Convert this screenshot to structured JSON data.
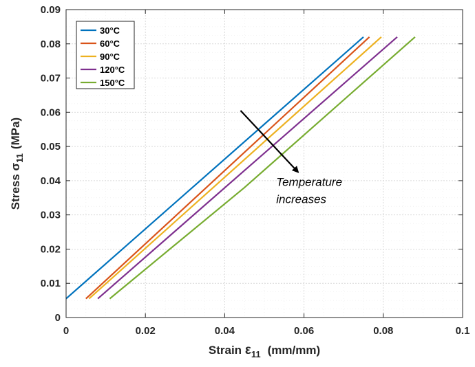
{
  "chart_data": {
    "type": "line",
    "title": "",
    "xlabel": "Strain",
    "xlabel_symbol": "ε",
    "xlabel_sub": "11",
    "xlabel_unit": "(mm/mm)",
    "ylabel": "Stress",
    "ylabel_symbol": "σ",
    "ylabel_sub": "11",
    "ylabel_unit": "(MPa)",
    "xlim": [
      0,
      0.1
    ],
    "ylim": [
      0,
      0.09
    ],
    "xticks": [
      "0",
      "0.02",
      "0.04",
      "0.06",
      "0.08",
      "0.1"
    ],
    "yticks": [
      "0",
      "0.01",
      "0.02",
      "0.03",
      "0.04",
      "0.05",
      "0.06",
      "0.07",
      "0.08",
      "0.09"
    ],
    "grid": true,
    "legend_position": "top-left",
    "series": [
      {
        "name": "30°C",
        "color": "#0072BD",
        "x": [
          0,
          0.075
        ],
        "y": [
          0.0055,
          0.082
        ]
      },
      {
        "name": "60°C",
        "color": "#D95319",
        "x": [
          0.005,
          0.0765
        ],
        "y": [
          0.0055,
          0.082
        ]
      },
      {
        "name": "90°C",
        "color": "#EDB120",
        "x": [
          0.0058,
          0.0795
        ],
        "y": [
          0.0055,
          0.082
        ]
      },
      {
        "name": "120°C",
        "color": "#7E2F8E",
        "x": [
          0.008,
          0.0835
        ],
        "y": [
          0.0055,
          0.082
        ]
      },
      {
        "name": "150°C",
        "color": "#77AC30",
        "x": [
          0.011,
          0.045,
          0.088
        ],
        "y": [
          0.0055,
          0.038,
          0.082
        ]
      }
    ],
    "annotation": {
      "text_line1": "Temperature",
      "text_line2": "increases",
      "arrow_from": [
        0.044,
        0.0605
      ],
      "arrow_to": [
        0.0585,
        0.0425
      ],
      "text_at": [
        0.053,
        0.0385
      ]
    }
  }
}
